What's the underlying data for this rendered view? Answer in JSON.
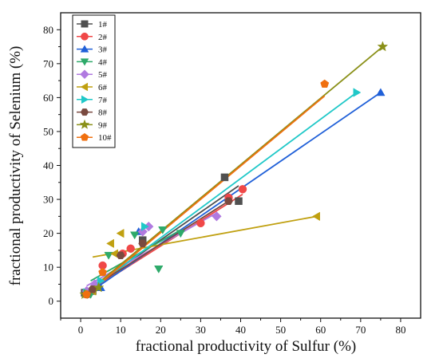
{
  "chart_data": {
    "type": "scatter",
    "xlabel": "fractional  productivity of  Sulfur (%)",
    "ylabel": "fractional  productivity of  Selenium (%)",
    "xlim": [
      -5,
      85
    ],
    "ylim": [
      -5,
      85
    ],
    "xticks": [
      0,
      10,
      20,
      30,
      40,
      50,
      60,
      70,
      80
    ],
    "yticks": [
      0,
      10,
      20,
      30,
      40,
      50,
      60,
      70,
      80
    ],
    "grid": false,
    "legend_position": "top-left",
    "series": [
      {
        "name": "1#",
        "marker": "square",
        "color": "#505050",
        "points": [
          [
            1,
            2.5
          ],
          [
            3,
            3
          ],
          [
            15.5,
            18
          ],
          [
            36,
            36.5
          ],
          [
            39.5,
            29.5
          ]
        ],
        "fit": [
          [
            1,
            2.5
          ],
          [
            39.5,
            34
          ]
        ]
      },
      {
        "name": "2#",
        "marker": "circle",
        "color": "#f04848",
        "points": [
          [
            1.5,
            2
          ],
          [
            5.5,
            10.5
          ],
          [
            10.5,
            14
          ],
          [
            12.5,
            15.5
          ],
          [
            30,
            23
          ],
          [
            37,
            30.5
          ],
          [
            40.5,
            33
          ]
        ],
        "fit": [
          [
            1.5,
            2.5
          ],
          [
            40.5,
            31.5
          ]
        ]
      },
      {
        "name": "3#",
        "marker": "triangle-up",
        "color": "#2060d8",
        "points": [
          [
            1.5,
            2
          ],
          [
            5,
            4
          ],
          [
            14.5,
            20.5
          ],
          [
            75,
            61.5
          ]
        ],
        "fit": [
          [
            1.5,
            2
          ],
          [
            75,
            61.5
          ]
        ]
      },
      {
        "name": "4#",
        "marker": "triangle-down",
        "color": "#2eaa6a",
        "points": [
          [
            2.5,
            2
          ],
          [
            7,
            13.5
          ],
          [
            13.5,
            19.5
          ],
          [
            19.5,
            9.5
          ],
          [
            20.5,
            21
          ],
          [
            25,
            20
          ]
        ],
        "fit": [
          [
            2.5,
            6
          ],
          [
            25,
            21
          ]
        ]
      },
      {
        "name": "5#",
        "marker": "diamond",
        "color": "#b07ae0",
        "points": [
          [
            1.5,
            3
          ],
          [
            3.5,
            5
          ],
          [
            15.5,
            20.5
          ],
          [
            17,
            22
          ],
          [
            34,
            25
          ]
        ],
        "fit": [
          [
            1.5,
            4.5
          ],
          [
            34,
            26
          ]
        ]
      },
      {
        "name": "6#",
        "marker": "triangle-left",
        "color": "#c0a010",
        "points": [
          [
            3,
            3
          ],
          [
            7.5,
            17
          ],
          [
            8.5,
            14
          ],
          [
            10,
            20
          ],
          [
            59,
            25
          ]
        ],
        "fit": [
          [
            3,
            13
          ],
          [
            59,
            25
          ]
        ]
      },
      {
        "name": "7#",
        "marker": "triangle-right",
        "color": "#20c8c8",
        "points": [
          [
            1.5,
            2.5
          ],
          [
            5,
            6
          ],
          [
            16,
            22
          ],
          [
            69,
            61.5
          ]
        ],
        "fit": [
          [
            1.5,
            2.5
          ],
          [
            69,
            61.5
          ]
        ]
      },
      {
        "name": "8#",
        "marker": "hexagon",
        "color": "#7a4a40",
        "points": [
          [
            1.5,
            2
          ],
          [
            3,
            3.5
          ],
          [
            10,
            13.5
          ],
          [
            15.5,
            17
          ],
          [
            37,
            29.5
          ]
        ],
        "fit": [
          [
            1.5,
            3
          ],
          [
            37,
            29.5
          ]
        ]
      },
      {
        "name": "9#",
        "marker": "star",
        "color": "#8a9018",
        "points": [
          [
            1,
            2
          ],
          [
            4.5,
            4
          ],
          [
            75.5,
            75
          ]
        ],
        "fit": [
          [
            1,
            2
          ],
          [
            75.5,
            75
          ]
        ]
      },
      {
        "name": "10#",
        "marker": "pentagon",
        "color": "#f07010",
        "points": [
          [
            1.5,
            2
          ],
          [
            5.5,
            8.5
          ],
          [
            61,
            64
          ]
        ],
        "fit": [
          [
            1.5,
            2
          ],
          [
            61,
            60.5
          ]
        ]
      }
    ]
  }
}
